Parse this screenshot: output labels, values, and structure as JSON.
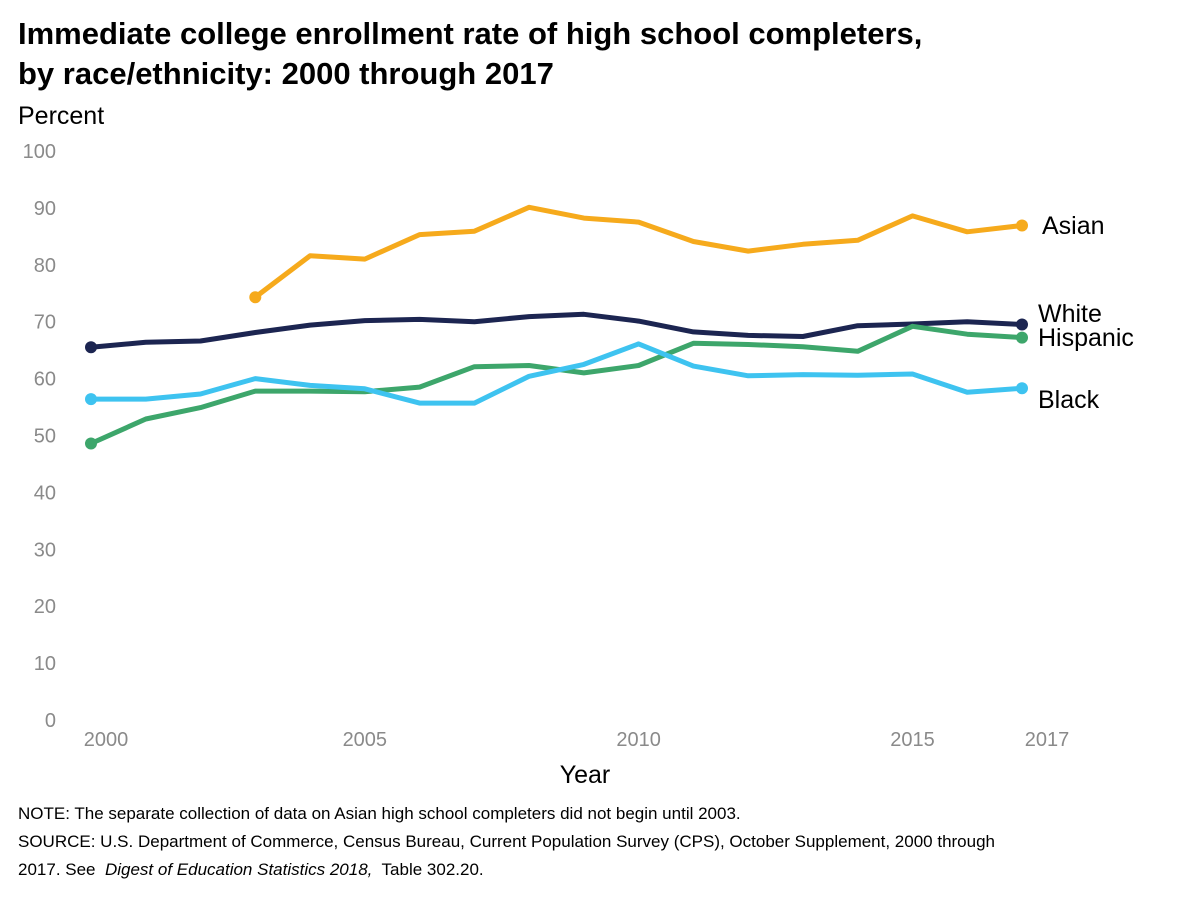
{
  "title_line1": "Immediate college enrollment rate of high school completers,",
  "title_line2": "by race/ethnicity: 2000 through 2017",
  "chart_data": {
    "type": "line",
    "title": "Immediate college enrollment rate of high school completers, by race/ethnicity: 2000 through 2017",
    "ylabel": "Percent",
    "xlabel": "Year",
    "ylim": [
      0,
      100
    ],
    "yticks": [
      0,
      10,
      20,
      30,
      40,
      50,
      60,
      70,
      80,
      90,
      100
    ],
    "xlim": [
      2000,
      2017
    ],
    "xticks": [
      2000,
      2005,
      2010,
      2015,
      2017
    ],
    "grid": false,
    "series": [
      {
        "name": "Asian",
        "color": "#F6AA1C",
        "x": [
          2003,
          2004,
          2005,
          2006,
          2007,
          2008,
          2009,
          2010,
          2011,
          2012,
          2013,
          2014,
          2015,
          2016,
          2017
        ],
        "values": [
          74.3,
          81.6,
          81.0,
          85.3,
          85.9,
          90.1,
          88.2,
          87.5,
          84.1,
          82.4,
          83.6,
          84.3,
          88.6,
          85.8,
          86.9
        ]
      },
      {
        "name": "White",
        "color": "#1C2551",
        "x": [
          2000,
          2001,
          2002,
          2003,
          2004,
          2005,
          2006,
          2007,
          2008,
          2009,
          2010,
          2011,
          2012,
          2013,
          2014,
          2015,
          2016,
          2017
        ],
        "values": [
          65.5,
          66.4,
          66.6,
          68.1,
          69.4,
          70.2,
          70.4,
          70.0,
          70.9,
          71.3,
          70.1,
          68.2,
          67.6,
          67.4,
          69.3,
          69.6,
          70.0,
          69.5
        ]
      },
      {
        "name": "Hispanic",
        "color": "#3DA66B",
        "x": [
          2000,
          2001,
          2002,
          2003,
          2004,
          2005,
          2006,
          2007,
          2008,
          2009,
          2010,
          2011,
          2012,
          2013,
          2014,
          2015,
          2016,
          2017
        ],
        "values": [
          48.6,
          52.9,
          54.9,
          57.8,
          57.8,
          57.7,
          58.5,
          62.1,
          62.3,
          61.0,
          62.3,
          66.2,
          66.0,
          65.6,
          64.8,
          69.2,
          67.8,
          67.2
        ]
      },
      {
        "name": "Black",
        "color": "#3EC3F0",
        "x": [
          2000,
          2001,
          2002,
          2003,
          2004,
          2005,
          2006,
          2007,
          2008,
          2009,
          2010,
          2011,
          2012,
          2013,
          2014,
          2015,
          2016,
          2017
        ],
        "values": [
          56.4,
          56.4,
          57.3,
          60.0,
          58.8,
          58.2,
          55.7,
          55.7,
          60.4,
          62.5,
          66.1,
          62.2,
          60.5,
          60.7,
          60.6,
          60.8,
          57.6,
          58.3
        ]
      }
    ]
  },
  "notes": {
    "note": "NOTE: The separate collection of data on Asian high school completers did not begin until 2003.",
    "source_line1": "SOURCE: U.S. Department of Commerce, Census Bureau, Current Population Survey (CPS), October Supplement, 2000 through",
    "source_line2_a": "2017. See",
    "source_line2_italic": "Digest of Education Statistics 2018,",
    "source_line2_b": "Table 302.20."
  }
}
